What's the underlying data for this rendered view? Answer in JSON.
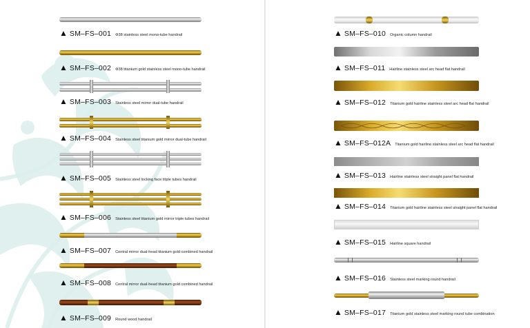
{
  "left_items": [
    {
      "code": "SM–FS–001",
      "desc": "Φ38 stainless steel mono-tube handrail"
    },
    {
      "code": "SM–FS–002",
      "desc": "Φ38 titanium gold stainless steel mono-tube handrail"
    },
    {
      "code": "SM–FS–003",
      "desc": "Stainless steel mirror dual-tube handrail"
    },
    {
      "code": "SM–FS–004",
      "desc": "Stainless steel titanium gold mirror dual-tube handrail"
    },
    {
      "code": "SM–FS–005",
      "desc": "Stainless steel locking face triple tubes handrail"
    },
    {
      "code": "SM–FS–006",
      "desc": "Stainless steel titanium gold mirror triple tubes handrail"
    },
    {
      "code": "SM–FS–007",
      "desc": "Central mirror dual-head titanium gold combined handrail"
    },
    {
      "code": "SM–FS–008",
      "desc": "Central mirror dual-head titanium gold combined handrail"
    },
    {
      "code": "SM–FS–009",
      "desc": "Round wood handrail"
    }
  ],
  "right_items": [
    {
      "code": "SM–FS–010",
      "desc": "Organic column handrail"
    },
    {
      "code": "SM–FS–011",
      "desc": "Hairline stainless steel arc head flat handrail"
    },
    {
      "code": "SM–FS–012",
      "desc": "Titanium gold hairline stainless steel arc head flat handrail"
    },
    {
      "code": "SM–FS–012A",
      "desc": "Titanium gold hairline stainless steel arc head flat handrail"
    },
    {
      "code": "SM–FS–013",
      "desc": "Hairline stainless steel straight panel flat handrail"
    },
    {
      "code": "SM–FS–014",
      "desc": "Titanium gold hairline stainless steel straight panel flat handrail"
    },
    {
      "code": "SM–FS–015",
      "desc": "Hairline square handrail"
    },
    {
      "code": "SM–FS–016",
      "desc": "Stainless steel marking round handrail"
    },
    {
      "code": "SM–FS–017",
      "desc": "Titanium gold stainless steel marking round tube combination"
    }
  ],
  "marker": "▲",
  "colors": {
    "accent_decor": "#d6ebea",
    "gold": "#d9ab2a",
    "silver": "#c9c9c9",
    "wood": "#7a3510"
  }
}
